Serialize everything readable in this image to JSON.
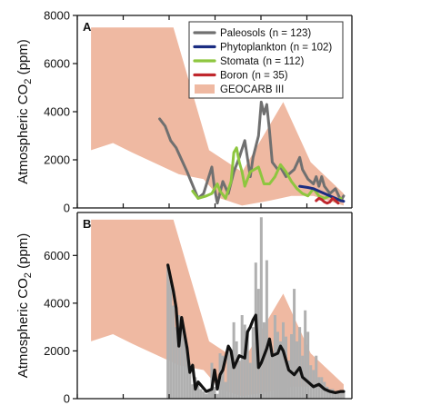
{
  "chart_data": [
    {
      "panel_label": "A",
      "type": "line",
      "ylabel": "Atmospheric CO2 (ppm)",
      "ylabel_main": "Atmospheric CO",
      "ylabel_sub": "2",
      "ylabel_unit": " (ppm)",
      "ylim": [
        0,
        8000
      ],
      "xlim": [
        0,
        100
      ],
      "yticks": [
        0,
        2000,
        4000,
        6000,
        8000
      ],
      "ytick_labels": [
        "0",
        "2000",
        "4000",
        "6000",
        "8000"
      ],
      "legend_placement": "top-right",
      "band": {
        "name": "GEOCARB III",
        "color": "#efb9a2",
        "upper": [
          [
            5,
            7500
          ],
          [
            35,
            7500
          ],
          [
            48,
            2400
          ],
          [
            60,
            1500
          ],
          [
            75,
            4400
          ],
          [
            85,
            1900
          ],
          [
            97,
            600
          ]
        ],
        "lower": [
          [
            5,
            2400
          ],
          [
            13,
            2700
          ],
          [
            20,
            2300
          ],
          [
            37,
            1400
          ],
          [
            46,
            1200
          ],
          [
            52,
            400
          ],
          [
            60,
            100
          ],
          [
            70,
            300
          ],
          [
            78,
            500
          ],
          [
            86,
            500
          ],
          [
            97,
            100
          ]
        ]
      },
      "series": [
        {
          "name": "Paleosols",
          "n_label": "(n = 123)",
          "color": "#707070",
          "points": [
            [
              30,
              3700
            ],
            [
              32,
              3400
            ],
            [
              34,
              2800
            ],
            [
              36,
              2500
            ],
            [
              40,
              1500
            ],
            [
              44,
              400
            ],
            [
              46,
              600
            ],
            [
              49,
              1700
            ],
            [
              50,
              800
            ],
            [
              51,
              200
            ],
            [
              53,
              1100
            ],
            [
              55,
              600
            ],
            [
              57,
              1500
            ],
            [
              59,
              2100
            ],
            [
              61,
              2800
            ],
            [
              63,
              1300
            ],
            [
              64,
              2100
            ],
            [
              66,
              3000
            ],
            [
              67,
              4400
            ],
            [
              68,
              3900
            ],
            [
              69,
              4300
            ],
            [
              70,
              3200
            ],
            [
              71,
              1900
            ],
            [
              73,
              1600
            ],
            [
              74,
              1700
            ],
            [
              76,
              1300
            ],
            [
              79,
              1600
            ],
            [
              81,
              2100
            ],
            [
              82,
              1600
            ],
            [
              84,
              1200
            ],
            [
              86,
              1000
            ],
            [
              87,
              1300
            ],
            [
              88,
              900
            ],
            [
              89,
              1300
            ],
            [
              90,
              900
            ],
            [
              92,
              600
            ],
            [
              94,
              800
            ],
            [
              96,
              300
            ],
            [
              97,
              500
            ]
          ]
        },
        {
          "name": "Phytoplankton",
          "n_label": "(n = 102)",
          "color": "#1b2d82",
          "points": [
            [
              81,
              900
            ],
            [
              84,
              850
            ],
            [
              86,
              800
            ],
            [
              88,
              700
            ],
            [
              90,
              600
            ],
            [
              92,
              500
            ],
            [
              94,
              400
            ],
            [
              96,
              300
            ],
            [
              97,
              280
            ]
          ]
        },
        {
          "name": "Stomata",
          "n_label": "(n = 112)",
          "color": "#8ec63f",
          "points": [
            [
              42,
              700
            ],
            [
              44,
              400
            ],
            [
              47,
              500
            ],
            [
              49,
              600
            ],
            [
              51,
              1000
            ],
            [
              52,
              700
            ],
            [
              54,
              400
            ],
            [
              56,
              1100
            ],
            [
              57,
              2300
            ],
            [
              58,
              2500
            ],
            [
              59,
              1900
            ],
            [
              60,
              1500
            ],
            [
              61,
              900
            ],
            [
              63,
              1500
            ],
            [
              66,
              1700
            ],
            [
              68,
              1000
            ],
            [
              70,
              1000
            ],
            [
              72,
              1300
            ],
            [
              74,
              1800
            ],
            [
              76,
              1500
            ],
            [
              78,
              1100
            ],
            [
              80,
              800
            ],
            [
              82,
              600
            ],
            [
              84,
              500
            ],
            [
              86,
              800
            ],
            [
              88,
              500
            ],
            [
              90,
              400
            ],
            [
              92,
              500
            ],
            [
              94,
              300
            ],
            [
              96,
              400
            ]
          ]
        },
        {
          "name": "Boron",
          "n_label": "(n = 35)",
          "color": "#c0272d",
          "points": [
            [
              87,
              300
            ],
            [
              88,
              400
            ],
            [
              89,
              350
            ],
            [
              90,
              250
            ],
            [
              91,
              200
            ],
            [
              92,
              250
            ],
            [
              93,
              400
            ],
            [
              94,
              300
            ],
            [
              95,
              200
            ]
          ]
        }
      ],
      "legend": [
        {
          "name": "Paleosols",
          "n_label": "(n = 123)"
        },
        {
          "name": "Phytoplankton",
          "n_label": "(n = 102)"
        },
        {
          "name": "Stomata",
          "n_label": "(n = 112)"
        },
        {
          "name": "Boron",
          "n_label": "(n = 35)"
        },
        {
          "name": "GEOCARB III",
          "n_label": ""
        }
      ]
    },
    {
      "panel_label": "B",
      "type": "line",
      "ylabel": "Atmospheric CO2 (ppm)",
      "ylabel_main": "Atmospheric CO",
      "ylabel_sub": "2",
      "ylabel_unit": " (ppm)",
      "ylim": [
        0,
        7800
      ],
      "xlim": [
        0,
        100
      ],
      "yticks": [
        0,
        2000,
        4000,
        6000
      ],
      "ytick_labels": [
        "0",
        "2000",
        "4000",
        "6000"
      ],
      "band": {
        "name": "GEOCARB III",
        "color": "#efb9a2",
        "upper": [
          [
            5,
            7500
          ],
          [
            35,
            7500
          ],
          [
            48,
            2400
          ],
          [
            60,
            1500
          ],
          [
            75,
            4400
          ],
          [
            85,
            1900
          ],
          [
            97,
            600
          ]
        ],
        "lower": [
          [
            5,
            2400
          ],
          [
            13,
            2700
          ],
          [
            20,
            2300
          ],
          [
            37,
            1400
          ],
          [
            46,
            1200
          ],
          [
            52,
            400
          ],
          [
            60,
            100
          ],
          [
            70,
            300
          ],
          [
            78,
            500
          ],
          [
            86,
            500
          ],
          [
            97,
            100
          ]
        ]
      },
      "bars_color": "#b0b0b0",
      "bars": [
        [
          33,
          5600
        ],
        [
          34,
          4900
        ],
        [
          35,
          3900
        ],
        [
          36,
          3000
        ],
        [
          37,
          3500
        ],
        [
          38,
          3000
        ],
        [
          39,
          2600
        ],
        [
          40,
          2200
        ],
        [
          41,
          1400
        ],
        [
          42,
          600
        ],
        [
          43,
          900
        ],
        [
          44,
          600
        ],
        [
          45,
          400
        ],
        [
          46,
          300
        ],
        [
          47,
          200
        ],
        [
          48,
          400
        ],
        [
          49,
          1500
        ],
        [
          50,
          500
        ],
        [
          51,
          200
        ],
        [
          52,
          1900
        ],
        [
          53,
          1800
        ],
        [
          54,
          700
        ],
        [
          55,
          2200
        ],
        [
          56,
          2000
        ],
        [
          57,
          3200
        ],
        [
          58,
          2400
        ],
        [
          59,
          1600
        ],
        [
          60,
          3500
        ],
        [
          61,
          3100
        ],
        [
          62,
          2800
        ],
        [
          63,
          1500
        ],
        [
          64,
          3000
        ],
        [
          65,
          5700
        ],
        [
          66,
          4600
        ],
        [
          67,
          7600
        ],
        [
          68,
          3200
        ],
        [
          69,
          5800
        ],
        [
          70,
          2200
        ],
        [
          71,
          1800
        ],
        [
          72,
          3500
        ],
        [
          73,
          2800
        ],
        [
          74,
          2400
        ],
        [
          75,
          3200
        ],
        [
          76,
          2600
        ],
        [
          77,
          1600
        ],
        [
          78,
          2700
        ],
        [
          79,
          4600
        ],
        [
          80,
          2400
        ],
        [
          81,
          3000
        ],
        [
          82,
          1800
        ],
        [
          83,
          3700
        ],
        [
          84,
          2800
        ],
        [
          85,
          1400
        ],
        [
          86,
          1200
        ],
        [
          87,
          1800
        ],
        [
          88,
          900
        ],
        [
          89,
          900
        ],
        [
          90,
          700
        ],
        [
          91,
          500
        ],
        [
          92,
          400
        ],
        [
          93,
          400
        ],
        [
          94,
          300
        ],
        [
          95,
          300
        ],
        [
          96,
          300
        ],
        [
          97,
          250
        ]
      ],
      "series": [
        {
          "name": "",
          "color": "#111111",
          "points": [
            [
              33,
              5600
            ],
            [
              35,
              4500
            ],
            [
              36,
              3800
            ],
            [
              37,
              2200
            ],
            [
              38,
              3400
            ],
            [
              40,
              2100
            ],
            [
              41,
              1100
            ],
            [
              42,
              1400
            ],
            [
              43,
              400
            ],
            [
              44,
              700
            ],
            [
              47,
              300
            ],
            [
              49,
              400
            ],
            [
              50,
              1200
            ],
            [
              51,
              400
            ],
            [
              52,
              1000
            ],
            [
              53,
              1200
            ],
            [
              55,
              2200
            ],
            [
              56,
              2000
            ],
            [
              57,
              1300
            ],
            [
              59,
              1800
            ],
            [
              61,
              1700
            ],
            [
              62,
              2800
            ],
            [
              63,
              3000
            ],
            [
              64,
              3300
            ],
            [
              65,
              3500
            ],
            [
              66,
              1300
            ],
            [
              67,
              1500
            ],
            [
              69,
              2100
            ],
            [
              70,
              2500
            ],
            [
              71,
              1800
            ],
            [
              73,
              1900
            ],
            [
              74,
              2200
            ],
            [
              75,
              2000
            ],
            [
              76,
              1600
            ],
            [
              77,
              1200
            ],
            [
              79,
              1000
            ],
            [
              81,
              1300
            ],
            [
              82,
              900
            ],
            [
              84,
              700
            ],
            [
              86,
              500
            ],
            [
              88,
              600
            ],
            [
              90,
              400
            ],
            [
              92,
              300
            ],
            [
              94,
              250
            ],
            [
              96,
              300
            ],
            [
              97,
              300
            ]
          ]
        }
      ]
    }
  ]
}
